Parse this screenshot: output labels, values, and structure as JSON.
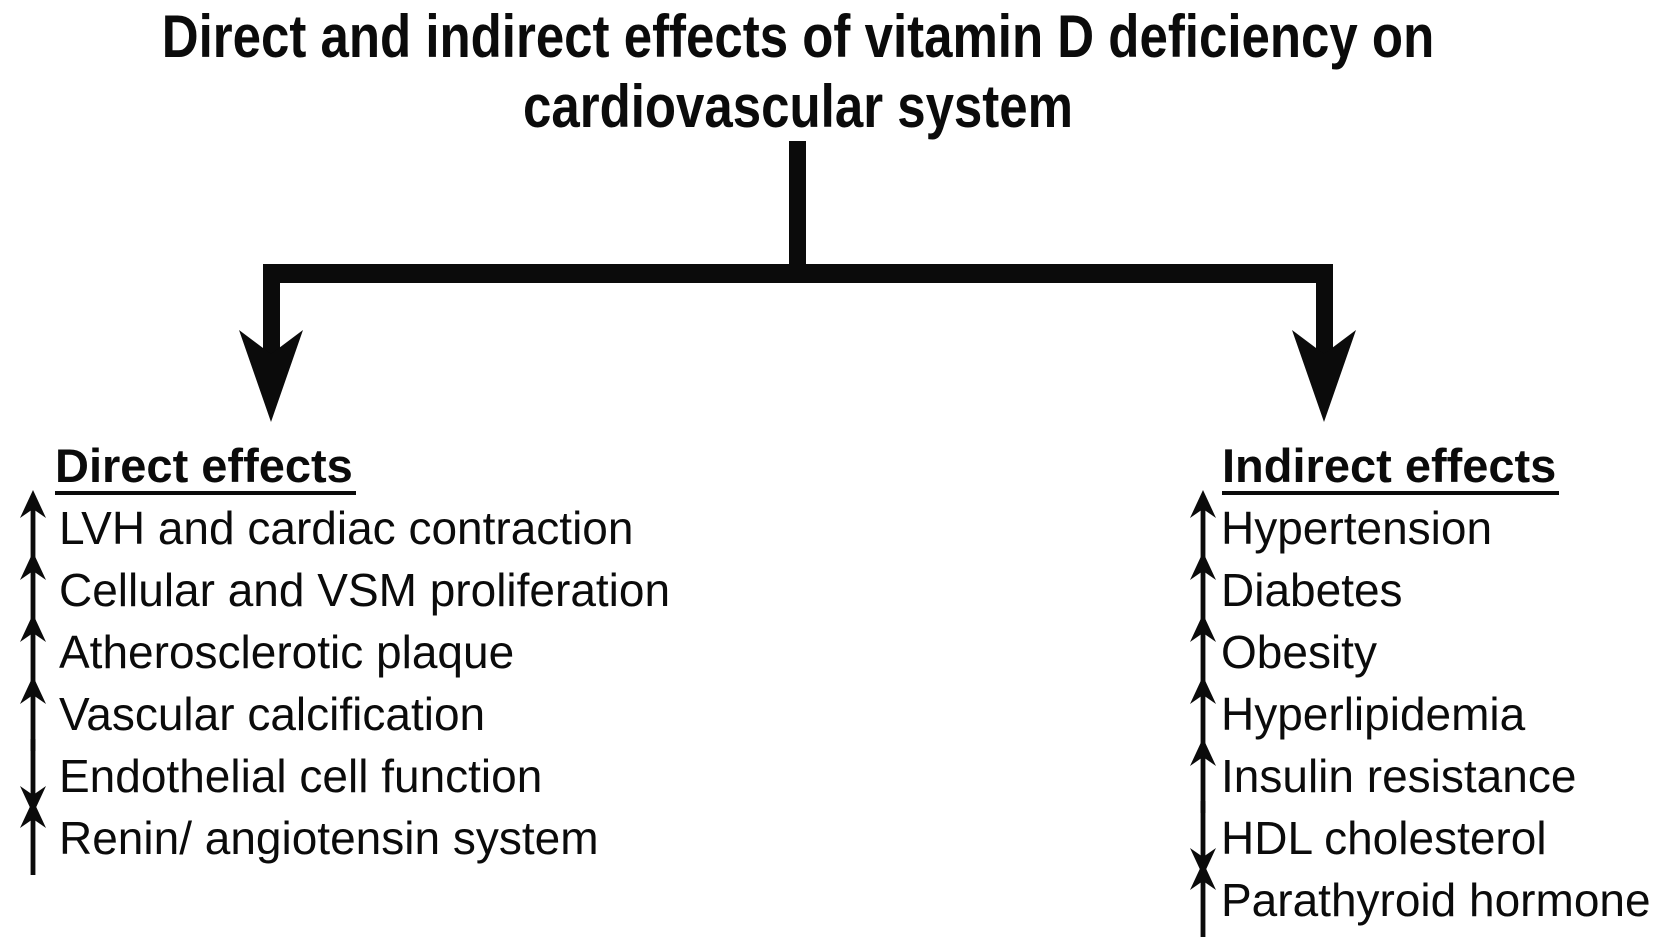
{
  "title": {
    "line1": "Direct and indirect effects of vitamin D deficiency on",
    "line2": "cardiovascular system"
  },
  "colors": {
    "ink": "#0b0b0b",
    "background": "#ffffff"
  },
  "connector": {
    "shape": "t-branch",
    "arrow_count": 2
  },
  "left_branch": {
    "heading": "Direct effects",
    "items": [
      {
        "direction": "up",
        "label": "LVH and cardiac contraction"
      },
      {
        "direction": "up",
        "label": "Cellular and VSM proliferation"
      },
      {
        "direction": "up",
        "label": "Atherosclerotic plaque"
      },
      {
        "direction": "up",
        "label": "Vascular calcification"
      },
      {
        "direction": "down",
        "label": "Endothelial cell function"
      },
      {
        "direction": "up",
        "label": "Renin/ angiotensin system"
      }
    ]
  },
  "right_branch": {
    "heading": "Indirect effects",
    "items": [
      {
        "direction": "up",
        "label": "Hypertension"
      },
      {
        "direction": "up",
        "label": "Diabetes"
      },
      {
        "direction": "up",
        "label": "Obesity"
      },
      {
        "direction": "up",
        "label": "Hyperlipidemia"
      },
      {
        "direction": "up",
        "label": "Insulin resistance"
      },
      {
        "direction": "down",
        "label": "HDL cholesterol"
      },
      {
        "direction": "up",
        "label": "Parathyroid hormone"
      }
    ]
  }
}
